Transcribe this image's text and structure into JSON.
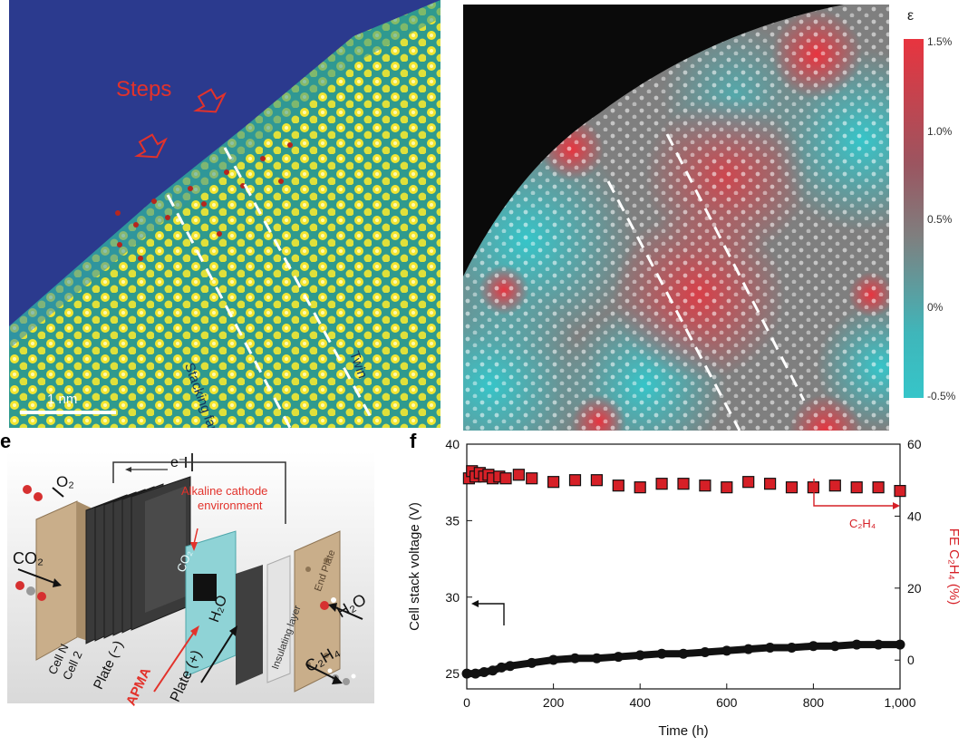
{
  "panel_e": {
    "letter": "e"
  },
  "panel_f": {
    "letter": "f"
  },
  "stem_image": {
    "steps_label": "Steps",
    "stacking_fault_label": "Stacking fault",
    "twin_label": "Twin",
    "scale_bar_label": "1 nm"
  },
  "strain_map": {
    "colorbar_symbol": "ε",
    "colorbar_ticks": [
      "1.5%",
      "1.0%",
      "0.5%",
      "0%",
      "-0.5%"
    ],
    "colors": {
      "high": "#e8343f",
      "mid": "#7f7f7f",
      "low": "#36c5c9"
    }
  },
  "device": {
    "electron_label": "e⁻",
    "o2_label": "O₂",
    "co2_label": "CO₂",
    "alkaline_label_line1": "Alkaline cathode",
    "alkaline_label_line2": "environment",
    "membrane_co2": "CO₂",
    "membrane_h2o": "H₂O",
    "cell_n_label": "Cell N",
    "cell_2_label": "Cell 2",
    "plate_minus_label": "Plate (−)",
    "apma_label": "APMA",
    "plate_plus_label": "Plate (+)",
    "insulating_label": "Insulating layer",
    "end_plate_label": "End Plate",
    "h2o_label": "H₂O",
    "c2h4_label": "C₂H₄"
  },
  "chart_data": {
    "type": "scatter",
    "xlabel": "Time (h)",
    "ylabel": "Cell stack voltage (V)",
    "ylabel_right": "FE C₂H₄ (%)",
    "xlim": [
      0,
      1000
    ],
    "ylim": [
      24,
      40
    ],
    "ylim_right": [
      -8,
      60
    ],
    "x_ticks": [
      "0",
      "200",
      "400",
      "600",
      "800",
      "1,000"
    ],
    "y_ticks": [
      "25",
      "30",
      "35",
      "40"
    ],
    "y_ticks_right": [
      "0",
      "20",
      "40",
      "60"
    ],
    "annotation_c2h4": "C₂H₄",
    "series": [
      {
        "axis": "right",
        "color": "#d62027",
        "x": [
          5,
          12,
          20,
          30,
          40,
          50,
          60,
          75,
          90,
          120,
          150,
          200,
          250,
          300,
          350,
          400,
          450,
          500,
          550,
          600,
          650,
          700,
          750,
          800,
          850,
          900,
          950,
          1000
        ],
        "y": [
          50.5,
          52.5,
          51.0,
          52.0,
          51.0,
          51.5,
          50.5,
          51.0,
          50.5,
          51.5,
          50.5,
          49.5,
          50.0,
          50.0,
          48.5,
          48.0,
          49.0,
          49.0,
          48.5,
          48.0,
          49.5,
          49.0,
          48.0,
          48.0,
          48.5,
          48.0,
          48.0,
          47.0
        ]
      },
      {
        "axis": "left",
        "color": "#111111",
        "x": [
          0,
          20,
          40,
          60,
          80,
          100,
          150,
          200,
          250,
          300,
          350,
          400,
          450,
          500,
          550,
          600,
          650,
          700,
          750,
          800,
          850,
          900,
          950,
          1000
        ],
        "y": [
          25.0,
          25.0,
          25.1,
          25.2,
          25.4,
          25.5,
          25.7,
          25.9,
          26.0,
          26.0,
          26.1,
          26.2,
          26.3,
          26.3,
          26.4,
          26.5,
          26.6,
          26.7,
          26.7,
          26.8,
          26.8,
          26.9,
          26.9,
          26.9
        ]
      }
    ]
  }
}
